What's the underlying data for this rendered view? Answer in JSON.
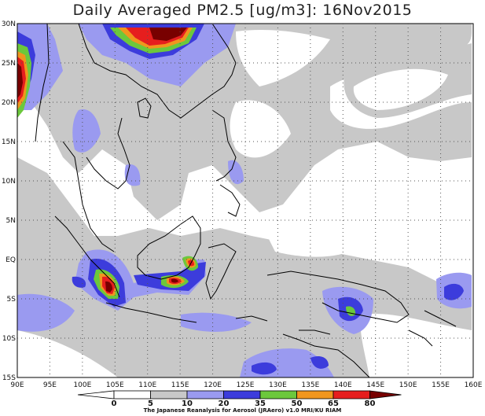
{
  "title": "Daily Averaged PM2.5 [ug/m3]: 16Nov2015",
  "credit": "The Japanese Reanalysis for Aerosol (JRAero) v1.0 MRI/KU RIAM",
  "axes": {
    "lon_labels": [
      "90E",
      "95E",
      "100E",
      "105E",
      "110E",
      "115E",
      "120E",
      "125E",
      "130E",
      "135E",
      "140E",
      "145E",
      "150E",
      "155E",
      "160E"
    ],
    "lat_labels": [
      "30N",
      "25N",
      "20N",
      "15N",
      "10N",
      "5N",
      "EQ",
      "5S",
      "10S",
      "15S"
    ],
    "lon_range": [
      90,
      160
    ],
    "lat_range": [
      -15,
      30
    ]
  },
  "colorbar": {
    "levels": [
      "0",
      "5",
      "10",
      "20",
      "35",
      "50",
      "65",
      "80"
    ],
    "colors": [
      "#ffffff",
      "#ffffff",
      "#c8c8c8",
      "#9a9af0",
      "#3c3cdc",
      "#6cc83c",
      "#f0961e",
      "#e61e1e",
      "#780000"
    ]
  },
  "map_data": {
    "colors": {
      "gray": "#c8c8c8",
      "lightblue": "#9a9af0",
      "blue": "#3c3cdc",
      "green": "#6cc83c",
      "orange": "#f0961e",
      "red": "#e61e1e",
      "darkred": "#780000"
    }
  }
}
